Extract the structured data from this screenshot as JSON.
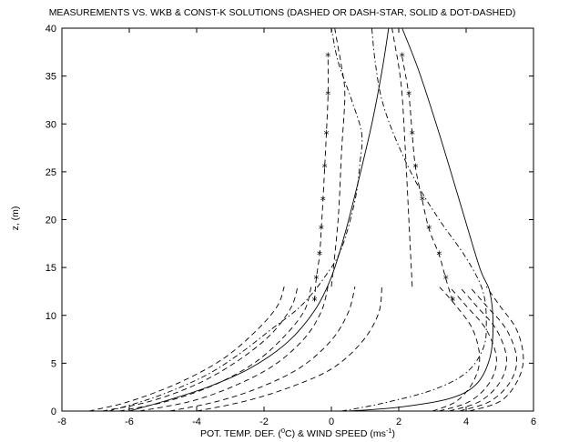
{
  "chart_data": {
    "type": "line",
    "title": "MEASUREMENTS VS. WKB & CONST-K SOLUTIONS (DASHED OR DASH-STAR, SOLID & DOT-DASHED)",
    "xlabel_prefix": "POT. TEMP. DEF. (",
    "xlabel_sup1": "0",
    "xlabel_mid": "C) & WIND SPEED (ms",
    "xlabel_sup2": "-1",
    "xlabel_suffix": ")",
    "ylabel": "z, (m)",
    "xlim": [
      -8,
      6
    ],
    "ylim": [
      0,
      40
    ],
    "xticks": [
      "-8",
      "-6",
      "-4",
      "-2",
      "0",
      "2",
      "4",
      "6"
    ],
    "yticks": [
      "0",
      "5",
      "10",
      "15",
      "20",
      "25",
      "30",
      "35",
      "40"
    ],
    "grid": false,
    "legend": "none",
    "series": [
      {
        "style": "dash-star",
        "x": [
          -0.5,
          -0.45,
          -0.35,
          -0.3,
          -0.25,
          -0.2,
          -0.15,
          -0.1
        ],
        "y": [
          11.5,
          13.8,
          16.3,
          19,
          22,
          25.4,
          28.9,
          33
        ],
        "extra": [
          -0.1
        ],
        "extra_y": [
          37
        ]
      },
      {
        "style": "dash-star",
        "x": [
          3.6,
          3.4,
          3.2,
          2.9,
          2.7,
          2.5,
          2.4,
          2.3,
          2.1
        ],
        "y": [
          11.5,
          13.8,
          16.3,
          19,
          22,
          25.4,
          28.9,
          33,
          37
        ]
      },
      {
        "style": "solid",
        "x": [
          -6,
          -4.8,
          -3.6,
          -2.4,
          -1.3,
          -0.5,
          0.0,
          0.4,
          0.8,
          1.2,
          1.5,
          1.7
        ],
        "y": [
          0,
          1.2,
          2.6,
          4.5,
          7.2,
          10.5,
          14,
          18.5,
          24,
          30,
          35.5,
          40
        ]
      },
      {
        "style": "solid",
        "x": [
          0.5,
          2.0,
          3.5,
          4.3,
          4.7,
          4.8,
          4.7,
          4.4,
          3.8,
          3.2,
          2.6,
          2.1
        ],
        "y": [
          0,
          0.4,
          1.3,
          2.8,
          5.5,
          9,
          12.5,
          15,
          22,
          29,
          35.5,
          40
        ]
      },
      {
        "style": "dashdot",
        "x": [
          -6.6,
          -5.2,
          -3.8,
          -2.8,
          -1.8,
          -0.9,
          -0.2,
          0.3,
          0.7,
          0.85,
          0.9,
          0.6,
          0.2,
          0.0
        ],
        "y": [
          0,
          1.5,
          3.6,
          5.8,
          8.5,
          11,
          14,
          17,
          22,
          26,
          29,
          32.5,
          36.5,
          40
        ]
      },
      {
        "style": "dashdot",
        "x": [
          0.3,
          1.5,
          3.0,
          4.0,
          4.5,
          4.6,
          4.5,
          4.0,
          3.2,
          2.5,
          1.9,
          1.5,
          1.3,
          1.2
        ],
        "y": [
          0,
          0.8,
          2.2,
          4.0,
          6.5,
          9.0,
          12.5,
          16,
          20,
          24,
          28.5,
          32.5,
          36.5,
          40
        ]
      },
      {
        "style": "dashed",
        "x": [
          -7.2,
          -6.0,
          -4.5,
          -3.2,
          -2.2,
          -1.6,
          -1.4
        ],
        "y": [
          0,
          1.0,
          3.0,
          5.5,
          8.5,
          11.0,
          13.0
        ]
      },
      {
        "style": "dashed",
        "x": [
          -6.8,
          -5.4,
          -4.0,
          -2.8,
          -1.8,
          -1.2,
          -1.0
        ],
        "y": [
          0,
          1.0,
          2.8,
          5.2,
          8.0,
          10.8,
          13.0
        ]
      },
      {
        "style": "dashed",
        "x": [
          -6.3,
          -4.9,
          -3.5,
          -2.3,
          -1.4,
          -0.8,
          -0.6
        ],
        "y": [
          0,
          1.0,
          2.7,
          5.0,
          7.8,
          10.5,
          13.0
        ]
      },
      {
        "style": "dashed",
        "x": [
          -5.7,
          -4.2,
          -2.9,
          -1.7,
          -0.8,
          -0.3,
          -0.1
        ],
        "y": [
          0,
          1.0,
          2.6,
          4.8,
          7.6,
          10.4,
          13.0
        ]
      },
      {
        "style": "dashed",
        "x": [
          -4.8,
          -3.4,
          -2.1,
          -0.9,
          0.0,
          0.5,
          0.7
        ],
        "y": [
          0,
          1.0,
          2.5,
          4.6,
          7.4,
          10.3,
          13.0
        ]
      },
      {
        "style": "dashed",
        "x": [
          -4.0,
          -2.6,
          -1.3,
          0.0,
          0.9,
          1.4,
          1.5
        ],
        "y": [
          0,
          1.0,
          2.4,
          4.4,
          7.2,
          10.2,
          13.0
        ]
      },
      {
        "style": "dashed",
        "x": [
          3.5,
          4.4,
          5.0,
          5.2,
          4.9,
          4.3,
          3.8
        ],
        "y": [
          0,
          1.0,
          3.0,
          5.5,
          8.5,
          11.0,
          13.0
        ]
      },
      {
        "style": "dashed",
        "x": [
          3.8,
          4.7,
          5.3,
          5.5,
          5.2,
          4.6,
          4.1
        ],
        "y": [
          0,
          1.0,
          3.0,
          5.5,
          8.5,
          11.0,
          13.0
        ]
      },
      {
        "style": "dashed",
        "x": [
          3.2,
          4.1,
          4.7,
          4.9,
          4.6,
          4.0,
          3.5
        ],
        "y": [
          0,
          1.0,
          3.0,
          5.5,
          8.5,
          11.0,
          13.0
        ]
      },
      {
        "style": "dashed",
        "x": [
          4.1,
          5.0,
          5.5,
          5.7,
          5.5,
          5.0,
          4.6
        ],
        "y": [
          0,
          1.0,
          3.0,
          5.5,
          8.5,
          11.0,
          13.0
        ]
      },
      {
        "style": "dashed",
        "x": [
          3.0,
          3.7,
          4.2,
          4.4,
          4.2,
          3.7,
          3.2
        ],
        "y": [
          0,
          1.0,
          3.0,
          5.5,
          8.5,
          11.0,
          13.0
        ]
      },
      {
        "style": "dashed",
        "x": [
          0.0,
          0.2,
          0.3,
          0.4,
          0.3,
          0.2,
          0.1
        ],
        "y": [
          13,
          20,
          27,
          33,
          36,
          38,
          40
        ]
      },
      {
        "style": "dashed",
        "x": [
          2.4,
          2.3,
          2.2,
          2.1,
          2.0,
          1.9,
          1.8
        ],
        "y": [
          13,
          20,
          27,
          33,
          36,
          38,
          40
        ]
      }
    ]
  }
}
